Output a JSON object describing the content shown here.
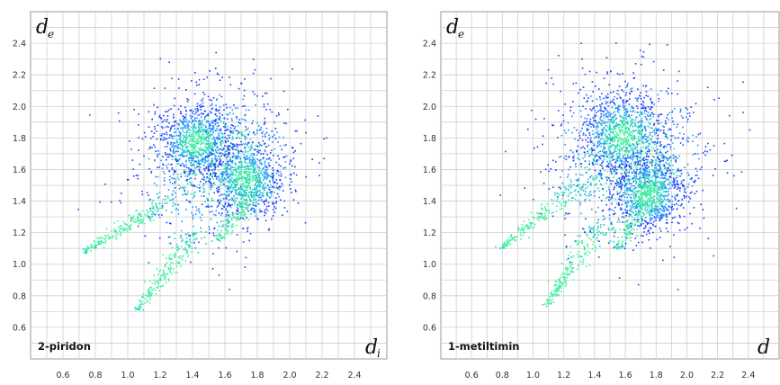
{
  "chart_data": [
    {
      "type": "heatmap",
      "panel_label": "2-piridon",
      "ylabel": "d",
      "ylabel_sub": "e",
      "xlabel": "d",
      "xlabel_sub": "i",
      "xlim": [
        0.4,
        2.6
      ],
      "ylim": [
        0.4,
        2.6
      ],
      "x_ticks": [
        "0.6",
        "0.8",
        "1.0",
        "1.2",
        "1.4",
        "1.6",
        "1.8",
        "2.0",
        "2.2",
        "2.4"
      ],
      "y_ticks": [
        "0.6",
        "0.8",
        "1.0",
        "1.2",
        "1.4",
        "1.6",
        "1.8",
        "2.0",
        "2.2",
        "2.4"
      ],
      "grid": true,
      "colors": {
        "low": "#1e3cff",
        "mid": "#1e90ff",
        "high": "#20d0c0",
        "peak": "#40f0a0"
      },
      "regions": [
        {
          "d_i": 1.55,
          "d_e": 1.65,
          "spread_i": 0.24,
          "spread_e": 0.24,
          "density": 1.0
        },
        {
          "d_i": 1.42,
          "d_e": 1.78,
          "spread_i": 0.12,
          "spread_e": 0.12,
          "density": 0.9
        },
        {
          "d_i": 1.72,
          "d_e": 1.55,
          "spread_i": 0.12,
          "spread_e": 0.12,
          "density": 0.8
        }
      ],
      "spikes": [
        {
          "from": [
            0.72,
            1.08
          ],
          "to": [
            1.28,
            1.42
          ],
          "width": 0.04
        },
        {
          "from": [
            1.06,
            0.72
          ],
          "to": [
            1.42,
            1.22
          ],
          "width": 0.04
        },
        {
          "from": [
            1.55,
            1.15
          ],
          "to": [
            1.85,
            1.55
          ],
          "width": 0.05
        }
      ]
    },
    {
      "type": "heatmap",
      "panel_label": "1-metiltimin",
      "ylabel": "d",
      "ylabel_sub": "e",
      "xlabel": "d",
      "xlabel_sub": "",
      "xlim": [
        0.4,
        2.6
      ],
      "ylim": [
        0.4,
        2.6
      ],
      "x_ticks": [
        "0.6",
        "0.8",
        "1.0",
        "1.2",
        "1.4",
        "1.6",
        "1.8",
        "2.0",
        "2.2",
        "2.4"
      ],
      "y_ticks": [
        "0.6",
        "0.8",
        "1.0",
        "1.2",
        "1.4",
        "1.6",
        "1.8",
        "2.0",
        "2.2",
        "2.4"
      ],
      "grid": true,
      "colors": {
        "low": "#1e3cff",
        "mid": "#1e90ff",
        "high": "#20d0c0",
        "peak": "#40f0a0"
      },
      "regions": [
        {
          "d_i": 1.62,
          "d_e": 1.68,
          "spread_i": 0.26,
          "spread_e": 0.26,
          "density": 1.0
        },
        {
          "d_i": 1.58,
          "d_e": 1.82,
          "spread_i": 0.14,
          "spread_e": 0.14,
          "density": 0.95
        },
        {
          "d_i": 1.75,
          "d_e": 1.45,
          "spread_i": 0.12,
          "spread_e": 0.12,
          "density": 0.9
        }
      ],
      "spikes": [
        {
          "from": [
            0.78,
            1.1
          ],
          "to": [
            1.32,
            1.52
          ],
          "width": 0.04
        },
        {
          "from": [
            1.08,
            0.74
          ],
          "to": [
            1.45,
            1.28
          ],
          "width": 0.04
        },
        {
          "from": [
            1.55,
            1.1
          ],
          "to": [
            1.85,
            1.65
          ],
          "width": 0.06
        }
      ]
    }
  ]
}
